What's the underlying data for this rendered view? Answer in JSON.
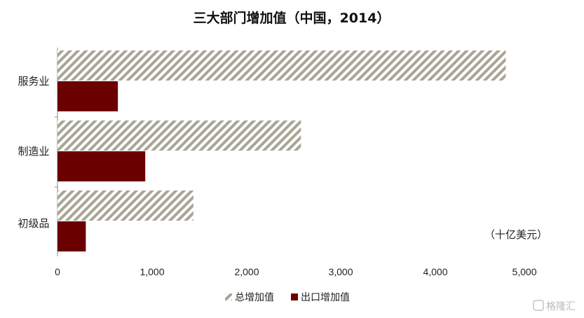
{
  "chart_data": {
    "type": "bar",
    "orientation": "horizontal",
    "title": "三大部门增加值（中国，2014）",
    "categories": [
      "服务业",
      "制造业",
      "初级品"
    ],
    "series": [
      {
        "name": "总增加值",
        "values": [
          4750,
          2580,
          1440
        ],
        "color": "#a8a595",
        "pattern": "diagonal-hatch"
      },
      {
        "name": "出口增加值",
        "values": [
          640,
          930,
          300
        ],
        "color": "#6a0000"
      }
    ],
    "x_ticks": [
      "0",
      "1,000",
      "2,000",
      "3,000",
      "4,000",
      "5,000"
    ],
    "x_tick_values": [
      0,
      1000,
      2000,
      3000,
      4000,
      5000
    ],
    "xlim": [
      0,
      5000
    ],
    "unit_label": "（十亿美元）",
    "grid": false,
    "legend_position": "bottom"
  },
  "watermark": {
    "text": "格隆汇"
  }
}
